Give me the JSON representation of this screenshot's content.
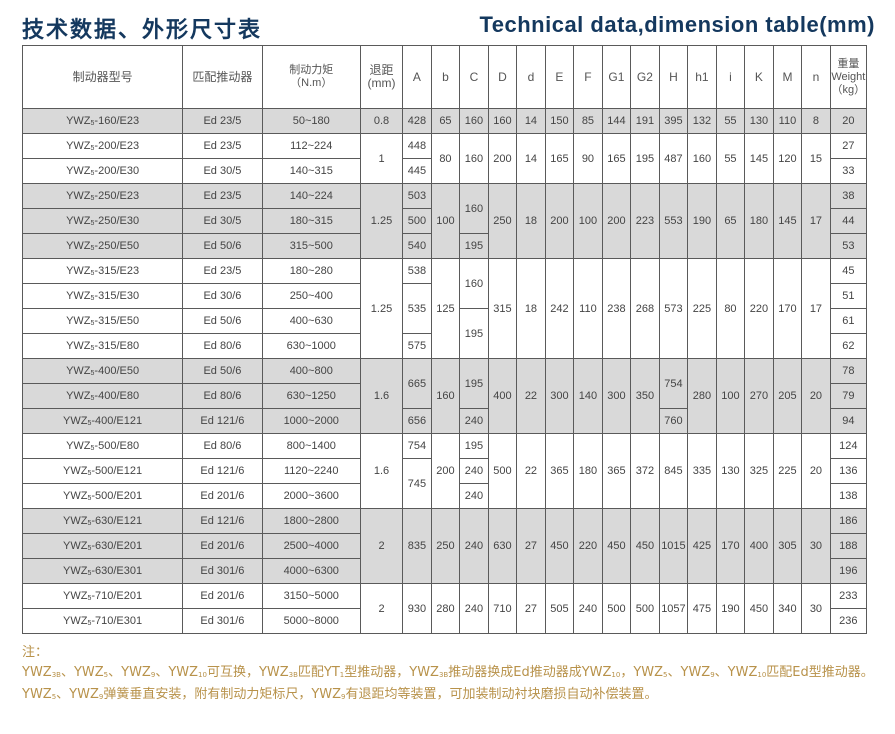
{
  "title_cn": "技术数据、外形尺寸表",
  "title_en": "Technical data,dimension table(mm)",
  "headers": {
    "model": "制动器型号",
    "actuator": "匹配推动器",
    "torque": "制动力矩",
    "torque_unit": "（N.m）",
    "retract": "退距",
    "retract_unit": "(mm)",
    "dims": [
      "A",
      "b",
      "C",
      "D",
      "d",
      "E",
      "F",
      "G1",
      "G2",
      "H",
      "h1",
      "i",
      "K",
      "M",
      "n"
    ],
    "weight": "重量",
    "weight_en": "Weight",
    "weight_unit": "（kg）"
  },
  "model_base": "YWZ",
  "model_sub": "5",
  "colors": {
    "title": "#14385e",
    "shade": "#d9d9d9",
    "note": "#b8924a"
  },
  "groups": [
    {
      "shade": true,
      "rows": [
        [
          "-160/E23",
          "Ed 23/5",
          "50~180",
          "20"
        ]
      ],
      "cols": [
        "0.8",
        "428",
        "65",
        "160",
        "160",
        "14",
        "150",
        "85",
        "144",
        "191",
        "395",
        "132",
        "55",
        "130",
        "110",
        "8"
      ]
    },
    {
      "shade": false,
      "rows": [
        [
          "-200/E23",
          "Ed 23/5",
          "112~224",
          "27"
        ],
        [
          "-200/E30",
          "Ed 30/5",
          "140~315",
          "33"
        ]
      ],
      "cols": [
        "1",
        [
          [
            "448",
            1
          ],
          [
            "445",
            1
          ]
        ],
        "80",
        "160",
        "200",
        "14",
        "165",
        "90",
        "165",
        "195",
        "487",
        "160",
        "55",
        "145",
        "120",
        "15"
      ]
    },
    {
      "shade": true,
      "rows": [
        [
          "-250/E23",
          "Ed 23/5",
          "140~224",
          "38"
        ],
        [
          "-250/E30",
          "Ed 30/5",
          "180~315",
          "44"
        ],
        [
          "-250/E50",
          "Ed 50/6",
          "315~500",
          "53"
        ]
      ],
      "cols": [
        "1.25",
        [
          [
            "503",
            1
          ],
          [
            "500",
            1
          ],
          [
            "540",
            1
          ]
        ],
        "100",
        [
          [
            "160",
            2
          ],
          [
            "195",
            1
          ]
        ],
        "250",
        "18",
        "200",
        "100",
        "200",
        "223",
        "553",
        "190",
        "65",
        "180",
        "145",
        "17"
      ]
    },
    {
      "shade": false,
      "rows": [
        [
          "-315/E23",
          "Ed 23/5",
          "180~280",
          "45"
        ],
        [
          "-315/E30",
          "Ed 30/6",
          "250~400",
          "51"
        ],
        [
          "-315/E50",
          "Ed 50/6",
          "400~630",
          "61"
        ],
        [
          "-315/E80",
          "Ed 80/6",
          "630~1000",
          "62"
        ]
      ],
      "cols": [
        "1.25",
        [
          [
            "538",
            1
          ],
          [
            "535",
            2
          ],
          [
            "575",
            1
          ]
        ],
        "125",
        [
          [
            "160",
            2
          ],
          [
            "195",
            2
          ]
        ],
        "315",
        "18",
        "242",
        "110",
        "238",
        "268",
        "573",
        "225",
        "80",
        "220",
        "170",
        "17"
      ]
    },
    {
      "shade": true,
      "rows": [
        [
          "-400/E50",
          "Ed 50/6",
          "400~800",
          "78"
        ],
        [
          "-400/E80",
          "Ed 80/6",
          "630~1250",
          "79"
        ],
        [
          "-400/E121",
          "Ed 121/6",
          "1000~2000",
          "94"
        ]
      ],
      "cols": [
        "1.6",
        [
          [
            "665",
            2
          ],
          [
            "656",
            1
          ]
        ],
        "160",
        [
          [
            "195",
            2
          ],
          [
            "240",
            1
          ]
        ],
        "400",
        "22",
        "300",
        "140",
        "300",
        "350",
        [
          [
            "754",
            2
          ],
          [
            "760",
            1
          ]
        ],
        "280",
        "100",
        "270",
        "205",
        "20"
      ]
    },
    {
      "shade": false,
      "rows": [
        [
          "-500/E80",
          "Ed 80/6",
          "800~1400",
          "124"
        ],
        [
          "-500/E121",
          "Ed 121/6",
          "1120~2240",
          "136"
        ],
        [
          "-500/E201",
          "Ed 201/6",
          "2000~3600",
          "138"
        ]
      ],
      "cols": [
        "1.6",
        [
          [
            "754",
            1
          ],
          [
            "745",
            2
          ]
        ],
        "200",
        [
          [
            "195",
            1
          ],
          [
            "240",
            1
          ],
          [
            "240",
            1
          ]
        ],
        "500",
        "22",
        "365",
        "180",
        "365",
        "372",
        "845",
        "335",
        "130",
        "325",
        "225",
        "20"
      ]
    },
    {
      "shade": true,
      "rows": [
        [
          "-630/E121",
          "Ed 121/6",
          "1800~2800",
          "186"
        ],
        [
          "-630/E201",
          "Ed 201/6",
          "2500~4000",
          "188"
        ],
        [
          "-630/E301",
          "Ed 301/6",
          "4000~6300",
          "196"
        ]
      ],
      "cols": [
        "2",
        "835",
        "250",
        "240",
        "630",
        "27",
        "450",
        "220",
        "450",
        "450",
        "1015",
        "425",
        "170",
        "400",
        "305",
        "30"
      ]
    },
    {
      "shade": false,
      "rows": [
        [
          "-710/E201",
          "Ed 201/6",
          "3150~5000",
          "233"
        ],
        [
          "-710/E301",
          "Ed 301/6",
          "5000~8000",
          "236"
        ]
      ],
      "cols": [
        "2",
        "930",
        "280",
        "240",
        "710",
        "27",
        "505",
        "240",
        "500",
        "500",
        "1057",
        "475",
        "190",
        "450",
        "340",
        "30"
      ]
    }
  ],
  "note_label": "注：",
  "note": [
    [
      "YWZ",
      ""
    ],
    [
      "3B",
      "s"
    ],
    [
      "、YWZ",
      ""
    ],
    [
      "5",
      "s"
    ],
    [
      "、YWZ",
      ""
    ],
    [
      "9",
      "s"
    ],
    [
      "、YWZ",
      ""
    ],
    [
      "10",
      "s"
    ],
    [
      "可互换，YWZ",
      ""
    ],
    [
      "3B",
      "s"
    ],
    [
      "匹配YT",
      ""
    ],
    [
      "1",
      "s"
    ],
    [
      "型推动器，YWZ",
      ""
    ],
    [
      "3B",
      "s"
    ],
    [
      "推动器换成Ed推动器成YWZ",
      ""
    ],
    [
      "10",
      "s"
    ],
    [
      "，YWZ",
      ""
    ],
    [
      "5",
      "s"
    ],
    [
      "、YWZ",
      ""
    ],
    [
      "9",
      "s"
    ],
    [
      "、YWZ",
      ""
    ],
    [
      "10",
      "s"
    ],
    [
      "匹配Ed型推动器。YWZ",
      ""
    ],
    [
      "5",
      "s"
    ],
    [
      "、YWZ",
      ""
    ],
    [
      "9",
      "s"
    ],
    [
      "弹簧垂直安装，附有制动力矩标尺，YWZ",
      ""
    ],
    [
      "9",
      "s"
    ],
    [
      "有退距均等装置，可加装制动衬块磨损自动补偿装置。",
      ""
    ]
  ]
}
